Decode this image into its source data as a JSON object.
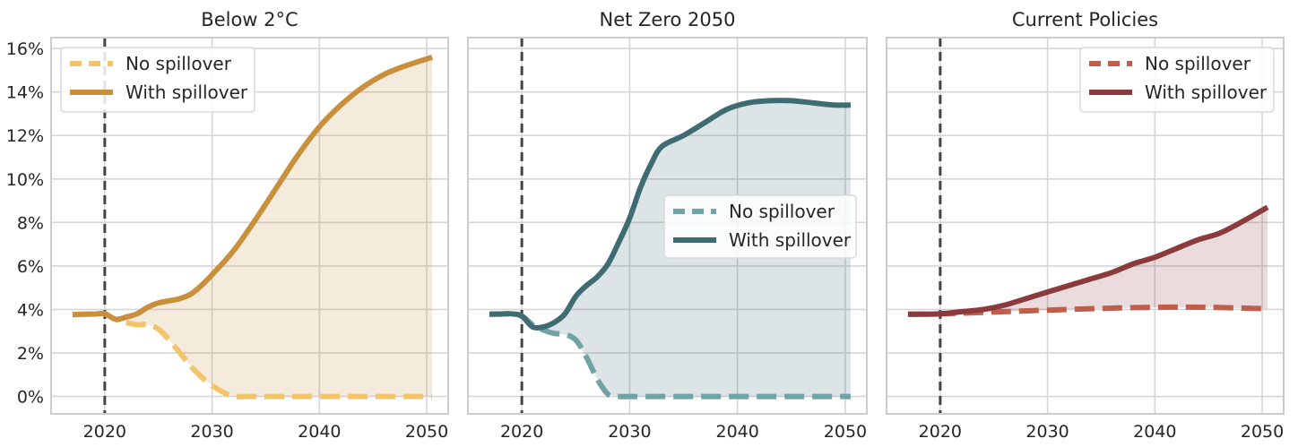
{
  "chart_data": [
    {
      "type": "line",
      "title": "Below 2°C",
      "xlabel": "",
      "ylabel": "",
      "xlim": [
        2015,
        2052
      ],
      "ylim": [
        -0.008,
        0.165
      ],
      "x_ticks": [
        2020,
        2030,
        2040,
        2050
      ],
      "y_ticks": [
        0,
        0.02,
        0.04,
        0.06,
        0.08,
        0.1,
        0.12,
        0.14,
        0.16
      ],
      "y_tick_labels": [
        "0%",
        "2%",
        "4%",
        "6%",
        "8%",
        "10%",
        "12%",
        "14%",
        "16%"
      ],
      "vline_x": 2020,
      "grid": true,
      "legend_placement": "upper-left",
      "fill_between_series": true,
      "series": [
        {
          "name": "No spillover",
          "style": "dashed",
          "color": "#F2C46C",
          "x": [
            2017,
            2018,
            2019,
            2020,
            2021,
            2022,
            2023,
            2024,
            2025,
            2026,
            2027,
            2028,
            2029,
            2030,
            2031,
            2032,
            2033,
            2035,
            2040,
            2045,
            2050.5
          ],
          "y": [
            0.0376,
            0.0378,
            0.0379,
            0.038,
            0.0355,
            0.034,
            0.033,
            0.033,
            0.031,
            0.026,
            0.02,
            0.014,
            0.009,
            0.005,
            0.002,
            0.0,
            0.0,
            0.0,
            0.0,
            0.0,
            0.0
          ]
        },
        {
          "name": "With spillover",
          "style": "solid",
          "color": "#C8903C",
          "x": [
            2017,
            2018,
            2019,
            2020,
            2021,
            2022,
            2023,
            2024,
            2025,
            2026,
            2027,
            2028,
            2029,
            2030,
            2032,
            2034,
            2036,
            2038,
            2040,
            2042,
            2044,
            2046,
            2048,
            2050.5
          ],
          "y": [
            0.0376,
            0.0378,
            0.0379,
            0.038,
            0.0355,
            0.0365,
            0.038,
            0.041,
            0.043,
            0.044,
            0.045,
            0.047,
            0.051,
            0.056,
            0.067,
            0.081,
            0.096,
            0.111,
            0.124,
            0.134,
            0.142,
            0.148,
            0.152,
            0.156
          ]
        }
      ]
    },
    {
      "type": "line",
      "title": "Net Zero 2050",
      "xlabel": "",
      "ylabel": "",
      "xlim": [
        2015,
        2052
      ],
      "ylim": [
        -0.008,
        0.165
      ],
      "x_ticks": [
        2020,
        2030,
        2040,
        2050
      ],
      "vline_x": 2020,
      "grid": true,
      "legend_placement": "center-right",
      "fill_between_series": true,
      "series": [
        {
          "name": "No spillover",
          "style": "dashed",
          "color": "#6FA3A6",
          "x": [
            2017,
            2018,
            2019,
            2020,
            2021,
            2022,
            2023,
            2024,
            2025,
            2026,
            2027,
            2028,
            2029,
            2030,
            2035,
            2040,
            2045,
            2050.5
          ],
          "y": [
            0.0378,
            0.0379,
            0.038,
            0.037,
            0.033,
            0.0305,
            0.029,
            0.0285,
            0.026,
            0.018,
            0.008,
            0.001,
            0.0,
            0.0,
            0.0,
            0.0,
            0.0,
            0.0
          ]
        },
        {
          "name": "With spillover",
          "style": "solid",
          "color": "#3F6B72",
          "x": [
            2017,
            2018,
            2019,
            2020,
            2021,
            2022,
            2023,
            2024,
            2025,
            2026,
            2027,
            2028,
            2029,
            2030,
            2031,
            2032,
            2033,
            2035,
            2037,
            2039,
            2041,
            2043,
            2045,
            2047,
            2049,
            2050.5
          ],
          "y": [
            0.0378,
            0.0379,
            0.038,
            0.037,
            0.032,
            0.032,
            0.034,
            0.038,
            0.046,
            0.051,
            0.055,
            0.061,
            0.071,
            0.082,
            0.096,
            0.107,
            0.115,
            0.12,
            0.126,
            0.132,
            0.135,
            0.136,
            0.136,
            0.135,
            0.134,
            0.134
          ]
        }
      ]
    },
    {
      "type": "line",
      "title": "Current Policies",
      "xlabel": "",
      "ylabel": "",
      "xlim": [
        2015,
        2052
      ],
      "ylim": [
        -0.008,
        0.165
      ],
      "x_ticks": [
        2020,
        2030,
        2040,
        2050
      ],
      "vline_x": 2020,
      "grid": true,
      "legend_placement": "upper-right",
      "fill_between_series": true,
      "series": [
        {
          "name": "No spillover",
          "style": "dashed",
          "color": "#BF5E4A",
          "x": [
            2017,
            2020,
            2023,
            2026,
            2030,
            2035,
            2040,
            2045,
            2050.5
          ],
          "y": [
            0.0378,
            0.038,
            0.0385,
            0.039,
            0.0397,
            0.0405,
            0.041,
            0.041,
            0.0403
          ]
        },
        {
          "name": "With spillover",
          "style": "solid",
          "color": "#8B3B3B",
          "x": [
            2017,
            2020,
            2022,
            2024,
            2026,
            2028,
            2030,
            2032,
            2034,
            2036,
            2038,
            2040,
            2042,
            2044,
            2046,
            2048,
            2050.5
          ],
          "y": [
            0.0378,
            0.038,
            0.039,
            0.04,
            0.042,
            0.045,
            0.048,
            0.051,
            0.054,
            0.057,
            0.061,
            0.064,
            0.068,
            0.072,
            0.075,
            0.08,
            0.087
          ]
        }
      ]
    }
  ]
}
